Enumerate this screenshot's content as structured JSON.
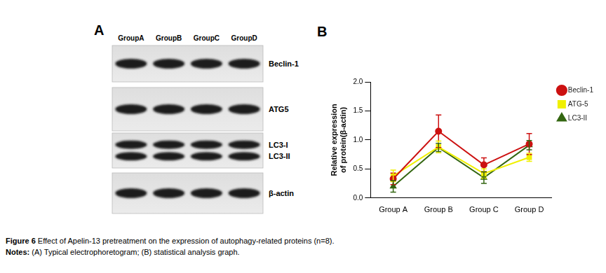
{
  "panels": [
    "A",
    "B"
  ],
  "blot": {
    "lanes": [
      "GroupA",
      "GroupB",
      "GroupC",
      "GroupD"
    ],
    "rows": [
      {
        "labels": [
          "Beclin-1"
        ]
      },
      {
        "labels": [
          "ATG5"
        ]
      },
      {
        "labels": [
          "LC3-I",
          "LC3-II"
        ]
      },
      {
        "labels": [
          "β-actin"
        ]
      }
    ]
  },
  "chart_data": {
    "type": "line",
    "categories": [
      "Group A",
      "Group B",
      "Group C",
      "Group D"
    ],
    "y_label": [
      "Relative expression",
      "of protein(β-actin)"
    ],
    "ylim": [
      0,
      2.0
    ],
    "yticks": [
      {
        "value": 0,
        "label": "0.0"
      },
      {
        "value": 0.5,
        "label": "0.5"
      },
      {
        "value": 1,
        "label": "1.0"
      },
      {
        "value": 1.5,
        "label": "1.5"
      },
      {
        "value": 2,
        "label": "2.0"
      }
    ],
    "grid": false,
    "legend": "right",
    "series": [
      {
        "name": "Beclin-1",
        "color": "#cc1111",
        "marker": "circle",
        "values": [
          0.33,
          1.15,
          0.57,
          0.93
        ],
        "errors": [
          0.1,
          0.28,
          0.12,
          0.18
        ]
      },
      {
        "name": "ATG-5",
        "color": "#f0f000",
        "marker": "square",
        "values": [
          0.38,
          0.88,
          0.42,
          0.7
        ],
        "errors": [
          0.1,
          0.1,
          0.08,
          0.07
        ]
      },
      {
        "name": "LC3-II",
        "color": "#336611",
        "marker": "triangle",
        "values": [
          0.2,
          0.87,
          0.35,
          0.91
        ],
        "errors": [
          0.1,
          0.07,
          0.1,
          0.08
        ]
      }
    ]
  },
  "caption": {
    "figure": {
      "label": "Figure 6",
      "text": "Effect of Apelin-13 pretreatment on the expression of autophagy-related proteins (n=8)."
    },
    "notes": {
      "label": "Notes:",
      "text": "(A) Typical electrophoretogram; (B) statistical analysis graph."
    }
  }
}
